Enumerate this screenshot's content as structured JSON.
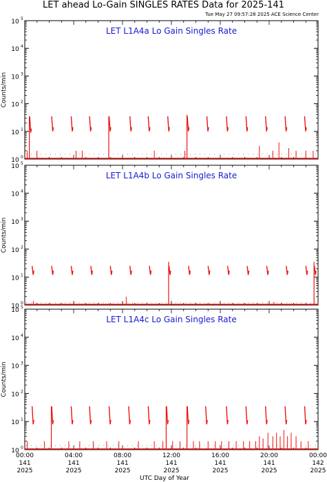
{
  "header": {
    "title": "LET ahead Lo-Gain SINGLES RATES Data for 2025-141",
    "timestamp": "Tue May 27 09:57:28 2025 ACE Science Center"
  },
  "colors": {
    "series": "#ee1111",
    "panel_title": "#1a1ad0",
    "axes": "#000000"
  },
  "chart_data": [
    {
      "type": "line",
      "title": "LET L1A4a Lo Gain Singles Rate",
      "ylabel": "Counts/min",
      "yscale": "log",
      "ylim": [
        1,
        100000
      ],
      "xlim": [
        0,
        24
      ],
      "grid": false,
      "y_tick_labels": [
        {
          "base": "10",
          "exp": "0"
        },
        {
          "base": "10",
          "exp": "1"
        },
        {
          "base": "10",
          "exp": "2"
        },
        {
          "base": "10",
          "exp": "3"
        },
        {
          "base": "10",
          "exp": "4"
        },
        {
          "base": "10",
          "exp": "5"
        }
      ],
      "bursts": [
        {
          "x": 0.4,
          "top": 35,
          "bottom": 9,
          "spike": 35
        },
        {
          "x": 2.2,
          "top": 35,
          "bottom": 10
        },
        {
          "x": 3.8,
          "top": 35,
          "bottom": 10
        },
        {
          "x": 5.3,
          "top": 35,
          "bottom": 10
        },
        {
          "x": 6.9,
          "top": 35,
          "bottom": 10,
          "spike": 35
        },
        {
          "x": 8.6,
          "top": 35,
          "bottom": 10
        },
        {
          "x": 10.1,
          "top": 35,
          "bottom": 10
        },
        {
          "x": 11.7,
          "top": 35,
          "bottom": 10
        },
        {
          "x": 13.3,
          "top": 35,
          "bottom": 10,
          "spike": 40
        },
        {
          "x": 14.9,
          "top": 35,
          "bottom": 10
        },
        {
          "x": 16.5,
          "top": 35,
          "bottom": 10
        },
        {
          "x": 18.1,
          "top": 35,
          "bottom": 10
        },
        {
          "x": 19.7,
          "top": 35,
          "bottom": 10
        },
        {
          "x": 21.3,
          "top": 35,
          "bottom": 10
        },
        {
          "x": 22.9,
          "top": 35,
          "bottom": 10
        }
      ],
      "noise_spikes": [
        [
          0.2,
          2
        ],
        [
          1.0,
          2
        ],
        [
          4.2,
          2
        ],
        [
          4.7,
          2
        ],
        [
          10.6,
          2
        ],
        [
          13.1,
          2
        ],
        [
          19.2,
          3
        ],
        [
          20.3,
          2
        ],
        [
          20.8,
          4
        ],
        [
          21.6,
          2.5
        ],
        [
          22.2,
          2
        ],
        [
          23.0,
          2
        ],
        [
          23.6,
          2
        ]
      ],
      "noise_level": 1.5
    },
    {
      "type": "line",
      "title": "LET L1A4b Lo Gain Singles Rate",
      "ylabel": "Counts/min",
      "yscale": "log",
      "ylim": [
        1,
        100000
      ],
      "xlim": [
        0,
        24
      ],
      "grid": false,
      "y_tick_labels": [
        {
          "base": "10",
          "exp": "0"
        },
        {
          "base": "10",
          "exp": "1"
        },
        {
          "base": "10",
          "exp": "2"
        },
        {
          "base": "10",
          "exp": "3"
        },
        {
          "base": "10",
          "exp": "4"
        },
        {
          "base": "10",
          "exp": "5"
        }
      ],
      "bursts": [
        {
          "x": 0.6,
          "top": 25,
          "bottom": 12
        },
        {
          "x": 2.2,
          "top": 25,
          "bottom": 12
        },
        {
          "x": 3.8,
          "top": 25,
          "bottom": 12
        },
        {
          "x": 5.4,
          "top": 25,
          "bottom": 12
        },
        {
          "x": 7.0,
          "top": 25,
          "bottom": 12
        },
        {
          "x": 8.6,
          "top": 25,
          "bottom": 12
        },
        {
          "x": 10.2,
          "top": 25,
          "bottom": 12
        },
        {
          "x": 11.8,
          "top": 25,
          "bottom": 12,
          "spike": 35
        },
        {
          "x": 13.4,
          "top": 25,
          "bottom": 12
        },
        {
          "x": 15.0,
          "top": 25,
          "bottom": 12
        },
        {
          "x": 16.6,
          "top": 25,
          "bottom": 12
        },
        {
          "x": 18.2,
          "top": 25,
          "bottom": 12
        },
        {
          "x": 19.8,
          "top": 25,
          "bottom": 12
        },
        {
          "x": 21.4,
          "top": 25,
          "bottom": 12
        },
        {
          "x": 23.0,
          "top": 25,
          "bottom": 12
        },
        {
          "x": 23.7,
          "top": 25,
          "bottom": 12,
          "spike": 35
        }
      ],
      "noise_spikes": [
        [
          0.7,
          1.4
        ],
        [
          8.3,
          2
        ],
        [
          20.4,
          1.3
        ]
      ],
      "noise_level": 1.2
    },
    {
      "type": "line",
      "title": "LET L1A4c Lo Gain Singles Rate",
      "ylabel": "Counts/min",
      "yscale": "log",
      "ylim": [
        1,
        100000
      ],
      "xlim": [
        0,
        24
      ],
      "grid": false,
      "y_tick_labels": [
        {
          "base": "10",
          "exp": "0"
        },
        {
          "base": "10",
          "exp": "1"
        },
        {
          "base": "10",
          "exp": "2"
        },
        {
          "base": "10",
          "exp": "3"
        },
        {
          "base": "10",
          "exp": "4"
        },
        {
          "base": "10",
          "exp": "5"
        }
      ],
      "x_tick_labels": [
        {
          "x": 0,
          "time": "00:00",
          "doy": "141",
          "year": "2025"
        },
        {
          "x": 4,
          "time": "04:00",
          "doy": "141",
          "year": "2025"
        },
        {
          "x": 8,
          "time": "08:00",
          "doy": "141",
          "year": "2025"
        },
        {
          "x": 12,
          "time": "12:00",
          "doy": "141",
          "year": "2025"
        },
        {
          "x": 16,
          "time": "16:00",
          "doy": "141",
          "year": "2025"
        },
        {
          "x": 20,
          "time": "20:00",
          "doy": "141",
          "year": "2025"
        },
        {
          "x": 24,
          "time": "00:00",
          "doy": "142",
          "year": "2025"
        }
      ],
      "xlabel": "UTC Day of Year",
      "bursts": [
        {
          "x": 0.6,
          "top": 35,
          "bottom": 8
        },
        {
          "x": 2.2,
          "top": 35,
          "bottom": 8,
          "spike": 35
        },
        {
          "x": 3.8,
          "top": 35,
          "bottom": 8
        },
        {
          "x": 5.3,
          "top": 35,
          "bottom": 8
        },
        {
          "x": 6.9,
          "top": 35,
          "bottom": 8
        },
        {
          "x": 8.5,
          "top": 35,
          "bottom": 8
        },
        {
          "x": 10.1,
          "top": 35,
          "bottom": 8
        },
        {
          "x": 11.6,
          "top": 35,
          "bottom": 8,
          "spike": 35
        },
        {
          "x": 13.3,
          "top": 35,
          "bottom": 8,
          "spike": 35
        },
        {
          "x": 14.8,
          "top": 35,
          "bottom": 8
        },
        {
          "x": 16.5,
          "top": 35,
          "bottom": 8
        },
        {
          "x": 18.1,
          "top": 35,
          "bottom": 8
        },
        {
          "x": 19.7,
          "top": 35,
          "bottom": 8
        },
        {
          "x": 21.3,
          "top": 35,
          "bottom": 8
        },
        {
          "x": 22.9,
          "top": 35,
          "bottom": 8
        }
      ],
      "noise_spikes": [
        [
          0.2,
          2
        ],
        [
          1.6,
          2
        ],
        [
          3.6,
          2
        ],
        [
          4.5,
          2
        ],
        [
          5.6,
          2
        ],
        [
          6.7,
          2
        ],
        [
          7.7,
          2
        ],
        [
          9.3,
          2
        ],
        [
          10.6,
          2
        ],
        [
          11.3,
          2
        ],
        [
          12.1,
          2
        ],
        [
          12.7,
          2
        ],
        [
          13.8,
          2
        ],
        [
          14.3,
          2
        ],
        [
          15.0,
          2
        ],
        [
          15.6,
          2
        ],
        [
          16.1,
          2
        ],
        [
          16.7,
          2
        ],
        [
          17.3,
          2
        ],
        [
          17.9,
          2
        ],
        [
          18.4,
          2
        ],
        [
          18.9,
          2
        ],
        [
          19.2,
          3
        ],
        [
          19.5,
          2.5
        ],
        [
          19.9,
          4
        ],
        [
          20.3,
          3
        ],
        [
          20.6,
          4
        ],
        [
          20.9,
          3
        ],
        [
          21.2,
          5
        ],
        [
          21.5,
          3
        ],
        [
          21.8,
          4
        ],
        [
          22.2,
          3
        ],
        [
          22.6,
          2
        ],
        [
          23.2,
          2
        ]
      ],
      "noise_level": 1.4
    }
  ]
}
